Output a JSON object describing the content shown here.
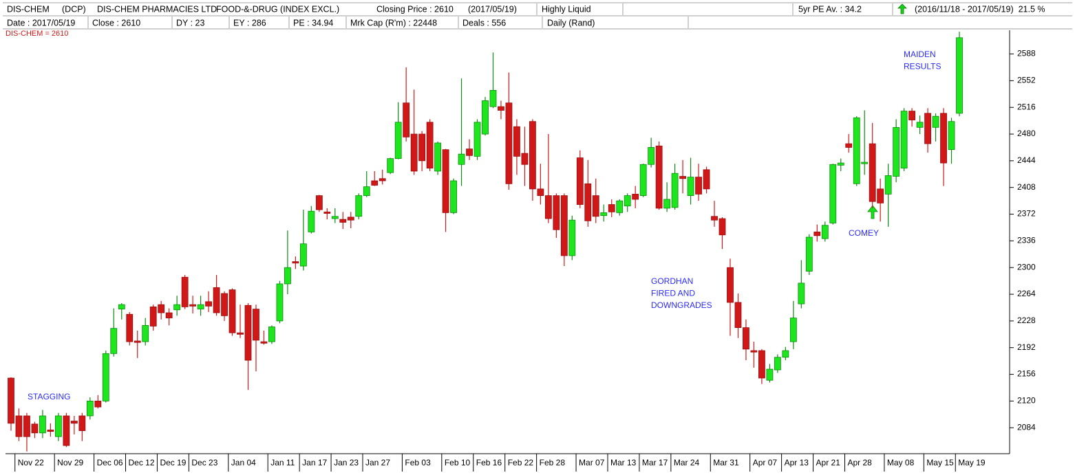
{
  "header": {
    "row1": [
      "DIS-CHEM",
      "(DCP)",
      "DIS-CHEM PHARMACIES LTD",
      "FOOD-&-DRUG (INDEX EXCL.)",
      "Closing Price : 2610",
      "(2017/05/19)",
      "Highly Liquid",
      "5yr PE Av. : 34.2",
      "(2016/11/18 - 2017/05/19)  21.5 %"
    ],
    "row2": [
      "Date : 2017/05/19",
      "Close : 2610",
      "DY : 23",
      "EY : 286",
      "PE : 34.94",
      "Mrk Cap (R'm) : 22448",
      "Deals : 556",
      "Daily (Rand)"
    ]
  },
  "chart_data": {
    "type": "candlestick",
    "series_label": "DIS-CHEM = 2610",
    "up_color": "#1ee61e",
    "down_color": "#d01818",
    "categories": [
      null,
      "Nov 22",
      null,
      null,
      null,
      null,
      "Nov 29",
      null,
      null,
      null,
      null,
      "Dec 06",
      null,
      null,
      null,
      "Dec 12",
      null,
      null,
      null,
      "Dec 19",
      null,
      null,
      null,
      "Dec 23",
      null,
      null,
      null,
      null,
      "Jan 04",
      null,
      null,
      null,
      null,
      "Jan 11",
      null,
      null,
      null,
      "Jan 17",
      null,
      null,
      null,
      "Jan 23",
      null,
      null,
      null,
      "Jan 27",
      null,
      null,
      null,
      null,
      "Feb 03",
      null,
      null,
      null,
      null,
      "Feb 10",
      null,
      null,
      null,
      "Feb 16",
      null,
      null,
      null,
      "Feb 22",
      null,
      null,
      null,
      "Feb 28",
      null,
      null,
      null,
      null,
      "Mar 07",
      null,
      null,
      null,
      "Mar 13",
      null,
      null,
      null,
      "Mar 17",
      null,
      null,
      null,
      "Mar 24",
      null,
      null,
      null,
      null,
      "Mar 31",
      null,
      null,
      null,
      null,
      "Apr 07",
      null,
      null,
      null,
      "Apr 13",
      null,
      null,
      null,
      "Apr 21",
      null,
      null,
      null,
      "Apr 28",
      null,
      null,
      null,
      null,
      "May 08",
      null,
      null,
      null,
      null,
      "May 15",
      null,
      null,
      null,
      "May 19"
    ],
    "open": [
      2151,
      2100,
      2100,
      2089,
      2077,
      2081,
      2072,
      2100,
      2093,
      2100,
      2100,
      2120,
      2120,
      2184,
      2244,
      2237,
      2201,
      2200,
      2247,
      2250,
      2239,
      2243,
      2287,
      2250,
      2244,
      2254,
      2273,
      2265,
      2270,
      2212,
      2249,
      2244,
      2200,
      2200,
      2228,
      2278,
      2308,
      2302,
      2348,
      2397,
      2375,
      2366,
      2365,
      2368,
      2369,
      2397,
      2417,
      2420,
      2428,
      2447,
      2522,
      2480,
      2480,
      2496,
      2430,
      2459,
      2374,
      2439,
      2460,
      2450,
      2480,
      2517,
      2517,
      2522,
      2490,
      2454,
      2497,
      2406,
      2397,
      2397,
      2397,
      2316,
      2448,
      2413,
      2397,
      2370,
      2385,
      2374,
      2383,
      2399,
      2397,
      2439,
      2464,
      2380,
      2381,
      2423,
      2397,
      2422,
      2432,
      2369,
      2366,
      2300,
      2253,
      2219,
      2188,
      2188,
      2148,
      2162,
      2179,
      2200,
      2251,
      2295,
      2348,
      2339,
      2360,
      2438,
      2467,
      2413,
      2440,
      2467,
      2406,
      2399,
      2423,
      2434,
      2511,
      2489,
      2508,
      2489,
      2508,
      2459,
      2508
    ],
    "high": [
      2152,
      2110,
      2104,
      2092,
      2108,
      2090,
      2104,
      2104,
      2100,
      2104,
      2125,
      2128,
      2188,
      2245,
      2252,
      2240,
      2215,
      2232,
      2250,
      2255,
      2245,
      2262,
      2290,
      2262,
      2262,
      2268,
      2290,
      2268,
      2272,
      2250,
      2252,
      2250,
      2215,
      2222,
      2282,
      2350,
      2315,
      2378,
      2383,
      2398,
      2380,
      2380,
      2375,
      2375,
      2400,
      2430,
      2430,
      2432,
      2448,
      2523,
      2570,
      2540,
      2484,
      2500,
      2470,
      2460,
      2420,
      2555,
      2473,
      2500,
      2530,
      2590,
      2525,
      2563,
      2500,
      2490,
      2500,
      2440,
      2480,
      2400,
      2400,
      2370,
      2458,
      2445,
      2420,
      2385,
      2392,
      2392,
      2400,
      2410,
      2440,
      2475,
      2470,
      2415,
      2440,
      2445,
      2448,
      2440,
      2436,
      2390,
      2368,
      2312,
      2265,
      2230,
      2200,
      2190,
      2170,
      2183,
      2193,
      2255,
      2310,
      2345,
      2358,
      2362,
      2440,
      2447,
      2480,
      2504,
      2512,
      2495,
      2420,
      2440,
      2500,
      2515,
      2515,
      2505,
      2515,
      2508,
      2515,
      2502,
      2618
    ],
    "low": [
      2080,
      2066,
      2052,
      2070,
      2070,
      2072,
      2066,
      2058,
      2075,
      2066,
      2095,
      2110,
      2118,
      2180,
      2230,
      2195,
      2178,
      2195,
      2215,
      2230,
      2222,
      2235,
      2244,
      2238,
      2235,
      2240,
      2235,
      2228,
      2208,
      2205,
      2135,
      2160,
      2196,
      2197,
      2225,
      2264,
      2298,
      2296,
      2346,
      2375,
      2365,
      2360,
      2352,
      2353,
      2365,
      2395,
      2410,
      2412,
      2426,
      2446,
      2470,
      2425,
      2430,
      2430,
      2425,
      2348,
      2372,
      2410,
      2445,
      2445,
      2478,
      2515,
      2500,
      2405,
      2425,
      2410,
      2390,
      2385,
      2360,
      2340,
      2302,
      2310,
      2380,
      2355,
      2360,
      2362,
      2368,
      2370,
      2375,
      2380,
      2395,
      2435,
      2378,
      2375,
      2378,
      2400,
      2385,
      2390,
      2400,
      2355,
      2325,
      2208,
      2205,
      2175,
      2165,
      2143,
      2145,
      2158,
      2175,
      2190,
      2245,
      2290,
      2335,
      2335,
      2358,
      2430,
      2455,
      2410,
      2425,
      2380,
      2362,
      2355,
      2415,
      2430,
      2490,
      2480,
      2455,
      2470,
      2410,
      2440,
      2504
    ],
    "close": [
      2090,
      2072,
      2072,
      2077,
      2100,
      2079,
      2100,
      2060,
      2090,
      2080,
      2120,
      2112,
      2184,
      2218,
      2250,
      2200,
      2199,
      2222,
      2221,
      2239,
      2232,
      2250,
      2247,
      2248,
      2250,
      2248,
      2239,
      2235,
      2212,
      2210,
      2175,
      2202,
      2198,
      2220,
      2278,
      2300,
      2306,
      2332,
      2376,
      2378,
      2373,
      2369,
      2361,
      2364,
      2397,
      2409,
      2411,
      2417,
      2447,
      2496,
      2476,
      2430,
      2444,
      2434,
      2468,
      2374,
      2417,
      2453,
      2451,
      2496,
      2525,
      2539,
      2512,
      2413,
      2450,
      2439,
      2406,
      2397,
      2366,
      2351,
      2316,
      2364,
      2385,
      2363,
      2369,
      2374,
      2375,
      2390,
      2397,
      2392,
      2439,
      2462,
      2380,
      2392,
      2427,
      2420,
      2422,
      2399,
      2406,
      2364,
      2344,
      2253,
      2219,
      2190,
      2186,
      2151,
      2163,
      2179,
      2188,
      2232,
      2279,
      2341,
      2343,
      2357,
      2439,
      2441,
      2462,
      2502,
      2442,
      2389,
      2387,
      2424,
      2489,
      2511,
      2499,
      2496,
      2467,
      2504,
      2441,
      2497,
      2610
    ],
    "ylim": [
      2049,
      2620
    ],
    "yticks": [
      2084,
      2120,
      2156,
      2192,
      2228,
      2264,
      2300,
      2336,
      2372,
      2408,
      2444,
      2480,
      2516,
      2552,
      2588
    ],
    "annotations": [
      {
        "lines": [
          "STAGGING"
        ]
      },
      {
        "lines": [
          "GORDHAN",
          "FIRED AND",
          "DOWNGRADES"
        ]
      },
      {
        "lines": [
          "COMEY"
        ]
      },
      {
        "lines": [
          "MAIDEN",
          "RESULTS"
        ]
      }
    ]
  }
}
